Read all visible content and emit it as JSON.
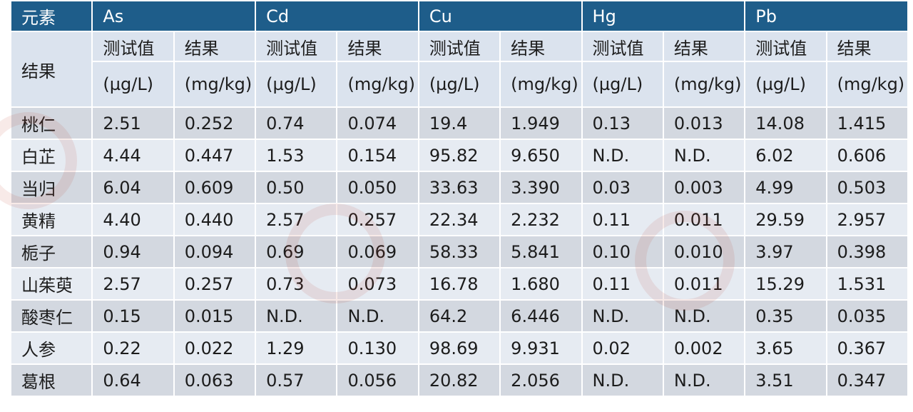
{
  "table": {
    "corner_label": "元素",
    "result_label": "结果",
    "elements": [
      "As",
      "Cd",
      "Cu",
      "Hg",
      "Pb"
    ],
    "test_value_label": "测试值",
    "result_col_label": "结果",
    "test_unit": "(µg/L)",
    "result_unit": "(mg/kg)",
    "rows": [
      {
        "name": "桃仁",
        "values": [
          "2.51",
          "0.252",
          "0.74",
          "0.074",
          "19.4",
          "1.949",
          "0.13",
          "0.013",
          "14.08",
          "1.415"
        ]
      },
      {
        "name": "白芷",
        "values": [
          "4.44",
          "0.447",
          "1.53",
          "0.154",
          "95.82",
          "9.650",
          "N.D.",
          "N.D.",
          "6.02",
          "0.606"
        ]
      },
      {
        "name": "当归",
        "values": [
          "6.04",
          "0.609",
          "0.50",
          "0.050",
          "33.63",
          "3.390",
          "0.03",
          "0.003",
          "4.99",
          "0.503"
        ]
      },
      {
        "name": "黄精",
        "values": [
          "4.40",
          "0.440",
          "2.57",
          "0.257",
          "22.34",
          "2.232",
          "0.11",
          "0.011",
          "29.59",
          "2.957"
        ]
      },
      {
        "name": "栀子",
        "values": [
          "0.94",
          "0.094",
          "0.69",
          "0.069",
          "58.33",
          "5.841",
          "0.10",
          "0.010",
          "3.97",
          "0.398"
        ]
      },
      {
        "name": "山茱萸",
        "values": [
          "2.57",
          "0.257",
          "0.73",
          "0.073",
          "16.78",
          "1.680",
          "0.11",
          "0.011",
          "15.29",
          "1.531"
        ]
      },
      {
        "name": "酸枣仁",
        "values": [
          "0.15",
          "0.015",
          "N.D.",
          "N.D.",
          "64.2",
          "6.446",
          "N.D.",
          "N.D.",
          "0.35",
          "0.035"
        ]
      },
      {
        "name": "人参",
        "values": [
          "0.22",
          "0.022",
          "1.29",
          "0.130",
          "98.69",
          "9.931",
          "0.02",
          "0.002",
          "3.65",
          "0.367"
        ]
      },
      {
        "name": "葛根",
        "values": [
          "0.64",
          "0.063",
          "0.57",
          "0.056",
          "20.82",
          "2.056",
          "N.D.",
          "N.D.",
          "3.51",
          "0.347"
        ]
      }
    ]
  },
  "colors": {
    "header_bg": "#1e5d8a",
    "header_text": "#ffffff",
    "row_odd": "#d3d8e0",
    "row_even": "#e6ebf2",
    "label_bg": "#dbe3ee",
    "watermark": "#c0392b"
  }
}
